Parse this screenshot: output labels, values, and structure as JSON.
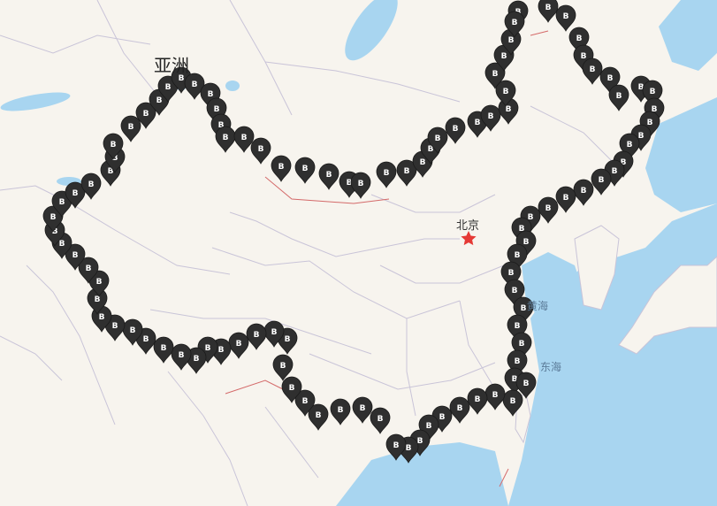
{
  "map": {
    "continent_label": "亚洲",
    "capital": {
      "name": "北京",
      "marker": "red-star",
      "color": "#e53935"
    },
    "seas": [
      "黄海",
      "东海"
    ],
    "marker": {
      "glyph": "B",
      "icon": "map-pin-icon",
      "color": "#2f2f2f",
      "text_color": "#ffffff"
    },
    "colors": {
      "land": "#f7f4ee",
      "water": "#a8d5f0",
      "border": "#c9c4d8",
      "national_border": "#d46a6a"
    }
  }
}
